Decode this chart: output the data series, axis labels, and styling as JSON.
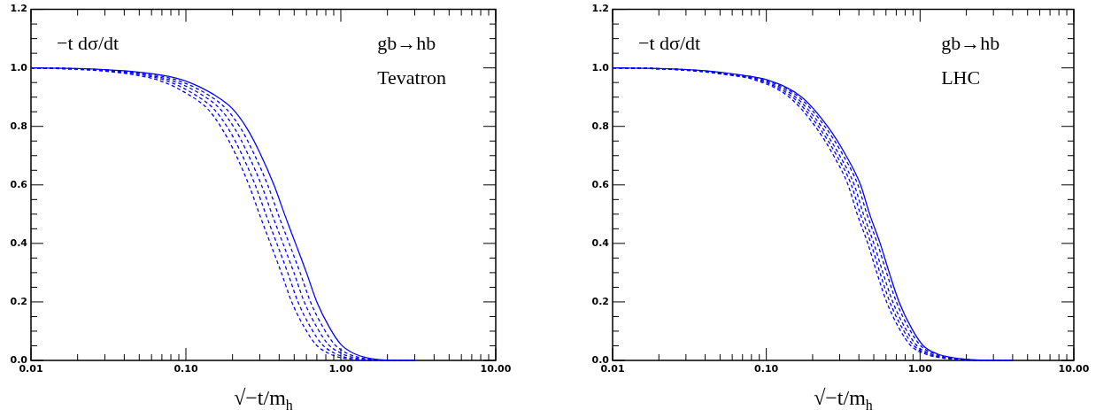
{
  "chart_data": [
    {
      "type": "line",
      "annotations": [
        "−t dσ/dt",
        "gb→hb",
        "Tevatron"
      ],
      "xlabel": "√−t/m$_{h}$",
      "log": "x",
      "xlim": [
        0.01,
        10
      ],
      "ylim": [
        0,
        1.2
      ],
      "xticks": [
        {
          "value": 0.01,
          "label": "0.01"
        },
        {
          "value": 0.02,
          "label": null
        },
        {
          "value": 0.03,
          "label": null
        },
        {
          "value": 0.04,
          "label": null
        },
        {
          "value": 0.05,
          "label": null
        },
        {
          "value": 0.06,
          "label": null
        },
        {
          "value": 0.07,
          "label": null
        },
        {
          "value": 0.08,
          "label": null
        },
        {
          "value": 0.09,
          "label": null
        },
        {
          "value": 0.1,
          "label": "0.10"
        },
        {
          "value": 0.2,
          "label": null
        },
        {
          "value": 0.3,
          "label": null
        },
        {
          "value": 0.4,
          "label": null
        },
        {
          "value": 0.5,
          "label": null
        },
        {
          "value": 0.6,
          "label": null
        },
        {
          "value": 0.7,
          "label": null
        },
        {
          "value": 0.8,
          "label": null
        },
        {
          "value": 0.9,
          "label": null
        },
        {
          "value": 1,
          "label": "1.00"
        },
        {
          "value": 2,
          "label": null
        },
        {
          "value": 3,
          "label": null
        },
        {
          "value": 4,
          "label": null
        },
        {
          "value": 5,
          "label": null
        },
        {
          "value": 6,
          "label": null
        },
        {
          "value": 7,
          "label": null
        },
        {
          "value": 8,
          "label": null
        },
        {
          "value": 9,
          "label": null
        },
        {
          "value": 10,
          "label": "10.00"
        }
      ],
      "yticks": [
        {
          "value": 0,
          "label": "0.0"
        },
        {
          "value": 0.05,
          "label": null
        },
        {
          "value": 0.1,
          "label": null
        },
        {
          "value": 0.15,
          "label": null
        },
        {
          "value": 0.2,
          "label": "0.2"
        },
        {
          "value": 0.25,
          "label": null
        },
        {
          "value": 0.3,
          "label": null
        },
        {
          "value": 0.35,
          "label": null
        },
        {
          "value": 0.4,
          "label": "0.4"
        },
        {
          "value": 0.45,
          "label": null
        },
        {
          "value": 0.5,
          "label": null
        },
        {
          "value": 0.55,
          "label": null
        },
        {
          "value": 0.6,
          "label": "0.6"
        },
        {
          "value": 0.65,
          "label": null
        },
        {
          "value": 0.7,
          "label": null
        },
        {
          "value": 0.75,
          "label": null
        },
        {
          "value": 0.8,
          "label": "0.8"
        },
        {
          "value": 0.85,
          "label": null
        },
        {
          "value": 0.9,
          "label": null
        },
        {
          "value": 0.95,
          "label": null
        },
        {
          "value": 1,
          "label": "1.0"
        },
        {
          "value": 1.05,
          "label": null
        },
        {
          "value": 1.1,
          "label": null
        },
        {
          "value": 1.15,
          "label": null
        },
        {
          "value": 1.2,
          "label": "1.2"
        }
      ],
      "series": [
        {
          "color": "#0000ff",
          "line_style": "solid",
          "x": [
            0.01,
            0.02,
            0.04,
            0.07,
            0.1,
            0.15,
            0.2,
            0.25,
            0.3,
            0.37,
            0.44,
            0.51,
            0.6,
            0.7,
            0.85,
            1.0,
            1.2,
            1.5,
            2,
            3
          ],
          "values": [
            1.0,
            0.998,
            0.99,
            0.975,
            0.955,
            0.91,
            0.86,
            0.79,
            0.71,
            0.6,
            0.49,
            0.4,
            0.3,
            0.2,
            0.11,
            0.055,
            0.025,
            0.008,
            0.001,
            0
          ]
        },
        {
          "color": "#0000ff",
          "line_style": "dashed",
          "x": [
            0.01,
            0.018,
            0.036,
            0.064,
            0.091,
            0.137,
            0.182,
            0.228,
            0.273,
            0.337,
            0.4,
            0.464,
            0.546,
            0.637,
            0.774,
            0.91,
            1.09,
            1.37,
            1.82,
            2.73
          ],
          "values": [
            1.0,
            0.998,
            0.99,
            0.975,
            0.955,
            0.91,
            0.86,
            0.79,
            0.71,
            0.6,
            0.49,
            0.4,
            0.3,
            0.2,
            0.11,
            0.055,
            0.025,
            0.008,
            0.001,
            0
          ]
        },
        {
          "color": "#0000ff",
          "line_style": "dashed",
          "x": [
            0.01,
            0.017,
            0.033,
            0.058,
            0.083,
            0.125,
            0.166,
            0.208,
            0.249,
            0.307,
            0.365,
            0.423,
            0.498,
            0.581,
            0.706,
            0.83,
            1.0,
            1.25,
            1.66,
            2.49
          ],
          "values": [
            1.0,
            0.998,
            0.99,
            0.975,
            0.955,
            0.91,
            0.86,
            0.79,
            0.71,
            0.6,
            0.49,
            0.4,
            0.3,
            0.2,
            0.11,
            0.055,
            0.025,
            0.008,
            0.001,
            0
          ]
        },
        {
          "color": "#0000ff",
          "line_style": "dashed",
          "x": [
            0.01,
            0.015,
            0.03,
            0.053,
            0.076,
            0.113,
            0.151,
            0.189,
            0.227,
            0.28,
            0.333,
            0.386,
            0.454,
            0.529,
            0.643,
            0.756,
            0.907,
            1.13,
            1.51,
            2.27
          ],
          "values": [
            1.0,
            0.998,
            0.99,
            0.975,
            0.955,
            0.91,
            0.86,
            0.79,
            0.71,
            0.6,
            0.49,
            0.4,
            0.3,
            0.2,
            0.11,
            0.055,
            0.025,
            0.008,
            0.001,
            0
          ]
        },
        {
          "color": "#0000ff",
          "line_style": "dashed",
          "x": [
            0.01,
            0.014,
            0.028,
            0.048,
            0.069,
            0.103,
            0.138,
            0.172,
            0.207,
            0.255,
            0.303,
            0.351,
            0.413,
            0.482,
            0.586,
            0.689,
            0.827,
            1.03,
            1.38,
            2.07
          ],
          "values": [
            1.0,
            0.998,
            0.99,
            0.975,
            0.955,
            0.91,
            0.86,
            0.79,
            0.71,
            0.6,
            0.49,
            0.4,
            0.3,
            0.2,
            0.11,
            0.055,
            0.025,
            0.008,
            0.001,
            0
          ]
        }
      ]
    },
    {
      "type": "line",
      "annotations": [
        "−t dσ/dt",
        "gb→hb",
        "LHC"
      ],
      "xlabel": "√−t/m$_{h}$",
      "log": "x",
      "xlim": [
        0.01,
        10
      ],
      "ylim": [
        0,
        1.2
      ],
      "xticks": [
        {
          "value": 0.01,
          "label": "0.01"
        },
        {
          "value": 0.02,
          "label": null
        },
        {
          "value": 0.03,
          "label": null
        },
        {
          "value": 0.04,
          "label": null
        },
        {
          "value": 0.05,
          "label": null
        },
        {
          "value": 0.06,
          "label": null
        },
        {
          "value": 0.07,
          "label": null
        },
        {
          "value": 0.08,
          "label": null
        },
        {
          "value": 0.09,
          "label": null
        },
        {
          "value": 0.1,
          "label": "0.10"
        },
        {
          "value": 0.2,
          "label": null
        },
        {
          "value": 0.3,
          "label": null
        },
        {
          "value": 0.4,
          "label": null
        },
        {
          "value": 0.5,
          "label": null
        },
        {
          "value": 0.6,
          "label": null
        },
        {
          "value": 0.7,
          "label": null
        },
        {
          "value": 0.8,
          "label": null
        },
        {
          "value": 0.9,
          "label": null
        },
        {
          "value": 1,
          "label": "1.00"
        },
        {
          "value": 2,
          "label": null
        },
        {
          "value": 3,
          "label": null
        },
        {
          "value": 4,
          "label": null
        },
        {
          "value": 5,
          "label": null
        },
        {
          "value": 6,
          "label": null
        },
        {
          "value": 7,
          "label": null
        },
        {
          "value": 8,
          "label": null
        },
        {
          "value": 9,
          "label": null
        },
        {
          "value": 10,
          "label": "10.00"
        }
      ],
      "yticks": [
        {
          "value": 0,
          "label": "0.0"
        },
        {
          "value": 0.05,
          "label": null
        },
        {
          "value": 0.1,
          "label": null
        },
        {
          "value": 0.15,
          "label": null
        },
        {
          "value": 0.2,
          "label": "0.2"
        },
        {
          "value": 0.25,
          "label": null
        },
        {
          "value": 0.3,
          "label": null
        },
        {
          "value": 0.35,
          "label": null
        },
        {
          "value": 0.4,
          "label": "0.4"
        },
        {
          "value": 0.45,
          "label": null
        },
        {
          "value": 0.5,
          "label": null
        },
        {
          "value": 0.55,
          "label": null
        },
        {
          "value": 0.6,
          "label": "0.6"
        },
        {
          "value": 0.65,
          "label": null
        },
        {
          "value": 0.7,
          "label": null
        },
        {
          "value": 0.75,
          "label": null
        },
        {
          "value": 0.8,
          "label": "0.8"
        },
        {
          "value": 0.85,
          "label": null
        },
        {
          "value": 0.9,
          "label": null
        },
        {
          "value": 0.95,
          "label": null
        },
        {
          "value": 1,
          "label": "1.0"
        },
        {
          "value": 1.05,
          "label": null
        },
        {
          "value": 1.1,
          "label": null
        },
        {
          "value": 1.15,
          "label": null
        },
        {
          "value": 1.2,
          "label": "1.2"
        }
      ],
      "series": [
        {
          "color": "#0000ff",
          "line_style": "solid",
          "x": [
            0.01,
            0.02,
            0.04,
            0.07,
            0.1,
            0.17,
            0.25,
            0.33,
            0.41,
            0.47,
            0.55,
            0.63,
            0.73,
            0.88,
            1.05,
            1.3,
            1.7,
            2.5,
            4
          ],
          "values": [
            1.0,
            0.998,
            0.99,
            0.975,
            0.96,
            0.9,
            0.8,
            0.7,
            0.6,
            0.5,
            0.4,
            0.3,
            0.2,
            0.11,
            0.05,
            0.022,
            0.008,
            0.001,
            0
          ]
        },
        {
          "color": "#0000ff",
          "line_style": "dashed",
          "x": [
            0.01,
            0.019,
            0.038,
            0.067,
            0.096,
            0.163,
            0.24,
            0.317,
            0.394,
            0.451,
            0.528,
            0.605,
            0.701,
            0.845,
            1.01,
            1.25,
            1.63,
            2.4,
            3.84
          ],
          "values": [
            1.0,
            0.998,
            0.99,
            0.975,
            0.96,
            0.9,
            0.8,
            0.7,
            0.6,
            0.5,
            0.4,
            0.3,
            0.2,
            0.11,
            0.05,
            0.022,
            0.008,
            0.001,
            0
          ]
        },
        {
          "color": "#0000ff",
          "line_style": "dashed",
          "x": [
            0.01,
            0.018,
            0.036,
            0.064,
            0.091,
            0.155,
            0.228,
            0.3,
            0.373,
            0.428,
            0.5,
            0.573,
            0.664,
            0.801,
            0.956,
            1.18,
            1.55,
            2.28,
            3.64
          ],
          "values": [
            1.0,
            0.998,
            0.99,
            0.975,
            0.96,
            0.9,
            0.8,
            0.7,
            0.6,
            0.5,
            0.4,
            0.3,
            0.2,
            0.11,
            0.05,
            0.022,
            0.008,
            0.001,
            0
          ]
        },
        {
          "color": "#0000ff",
          "line_style": "dashed",
          "x": [
            0.01,
            0.017,
            0.035,
            0.061,
            0.087,
            0.148,
            0.218,
            0.287,
            0.357,
            0.409,
            0.479,
            0.548,
            0.635,
            0.766,
            0.914,
            1.13,
            1.48,
            2.18,
            3.48
          ],
          "values": [
            1.0,
            0.998,
            0.99,
            0.975,
            0.96,
            0.9,
            0.8,
            0.7,
            0.6,
            0.5,
            0.4,
            0.3,
            0.2,
            0.11,
            0.05,
            0.022,
            0.008,
            0.001,
            0
          ]
        },
        {
          "color": "#0000ff",
          "line_style": "dashed",
          "x": [
            0.01,
            0.017,
            0.033,
            0.058,
            0.083,
            0.141,
            0.208,
            0.274,
            0.34,
            0.39,
            0.457,
            0.523,
            0.606,
            0.73,
            0.872,
            1.08,
            1.41,
            2.08,
            3.32
          ],
          "values": [
            1.0,
            0.998,
            0.99,
            0.975,
            0.96,
            0.9,
            0.8,
            0.7,
            0.6,
            0.5,
            0.4,
            0.3,
            0.2,
            0.11,
            0.05,
            0.022,
            0.008,
            0.001,
            0
          ]
        }
      ]
    }
  ]
}
